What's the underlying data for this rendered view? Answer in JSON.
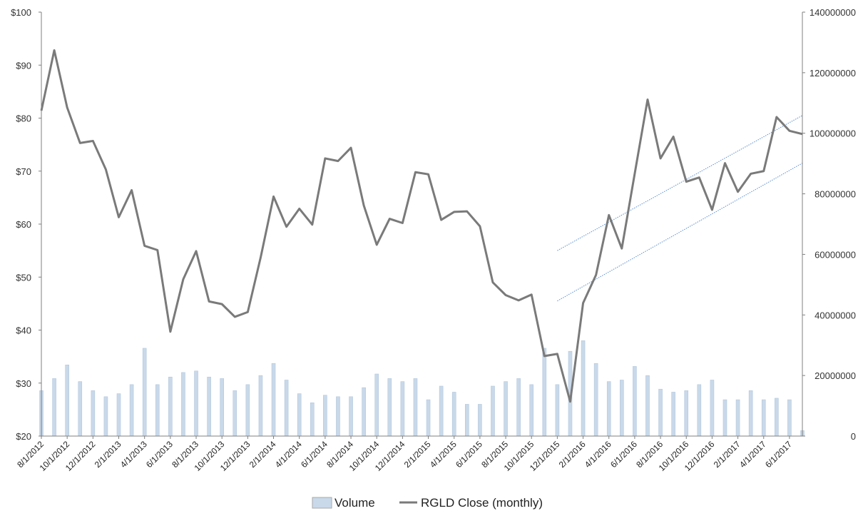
{
  "chart_data": {
    "type": "bar+line",
    "title": "",
    "xlabel": "",
    "ylabel_left": "",
    "ylabel_right": "",
    "y_left": {
      "min": 20,
      "max": 100,
      "ticks": [
        "$20",
        "$30",
        "$40",
        "$50",
        "$60",
        "$70",
        "$80",
        "$90",
        "$100"
      ]
    },
    "y_right": {
      "min": 0,
      "max": 140000000,
      "ticks": [
        "0",
        "20000000",
        "40000000",
        "60000000",
        "80000000",
        "100000000",
        "120000000",
        "140000000"
      ]
    },
    "grid": false,
    "legend_position": "bottom-center",
    "colors": {
      "volume_fill": "#c9d9ea",
      "volume_edge": "#b3c7dc",
      "close_line": "#7a7a7a",
      "trend_line": "#5b8fcf",
      "axis": "#7f7f7f"
    },
    "x_labels": [
      "8/1/2012",
      "10/1/2012",
      "12/1/2012",
      "2/1/2013",
      "4/1/2013",
      "6/1/2013",
      "8/1/2013",
      "10/1/2013",
      "12/1/2013",
      "2/1/2014",
      "4/1/2014",
      "6/1/2014",
      "8/1/2014",
      "10/1/2014",
      "12/1/2014",
      "2/1/2015",
      "4/1/2015",
      "6/1/2015",
      "8/1/2015",
      "10/1/2015",
      "12/1/2015",
      "2/1/2016",
      "4/1/2016",
      "6/1/2016",
      "8/1/2016",
      "10/1/2016",
      "12/1/2016",
      "2/1/2017",
      "4/1/2017",
      "6/1/2017"
    ],
    "series": [
      {
        "name": "Volume",
        "type": "bar",
        "axis": "right",
        "values": [
          15000000,
          19000000,
          23500000,
          18000000,
          15000000,
          13000000,
          14000000,
          17000000,
          29000000,
          17000000,
          19500000,
          21000000,
          21500000,
          19500000,
          19000000,
          15000000,
          17000000,
          20000000,
          24000000,
          18500000,
          14000000,
          11000000,
          13500000,
          13000000,
          13000000,
          16000000,
          20500000,
          19000000,
          18000000,
          19000000,
          12000000,
          16500000,
          14500000,
          10500000,
          10500000,
          16500000,
          18000000,
          19000000,
          17000000,
          29000000,
          17000000,
          28000000,
          31500000,
          24000000,
          18000000,
          18500000,
          23000000,
          20000000,
          15500000,
          14500000,
          15000000,
          17000000,
          18500000,
          12000000,
          12000000,
          15000000,
          12000000,
          12500000,
          12000000,
          1800000
        ]
      },
      {
        "name": "RGLD Close (monthly)",
        "type": "line",
        "axis": "left",
        "values": [
          81.4,
          92.8,
          82.0,
          75.3,
          75.7,
          70.3,
          61.3,
          66.4,
          55.9,
          55.1,
          39.7,
          49.6,
          54.9,
          45.4,
          44.9,
          42.5,
          43.4,
          53.7,
          65.2,
          59.5,
          62.9,
          59.9,
          72.4,
          71.9,
          74.4,
          63.5,
          56.1,
          61.0,
          60.2,
          69.8,
          69.4,
          60.8,
          62.3,
          62.4,
          59.6,
          49.0,
          46.6,
          45.6,
          46.7,
          35.1,
          35.5,
          26.5,
          45.1,
          50.4,
          61.7,
          55.4,
          69.5,
          83.5,
          72.4,
          76.5,
          68.0,
          68.8,
          62.7,
          71.5,
          66.1,
          69.5,
          70.0,
          80.2,
          77.6,
          77.0
        ]
      }
    ],
    "trend_channel": {
      "upper": {
        "from": [
          40,
          55.0
        ],
        "to": [
          59,
          80.5
        ]
      },
      "lower": {
        "from": [
          40,
          45.5
        ],
        "to": [
          59,
          71.5
        ]
      }
    }
  }
}
